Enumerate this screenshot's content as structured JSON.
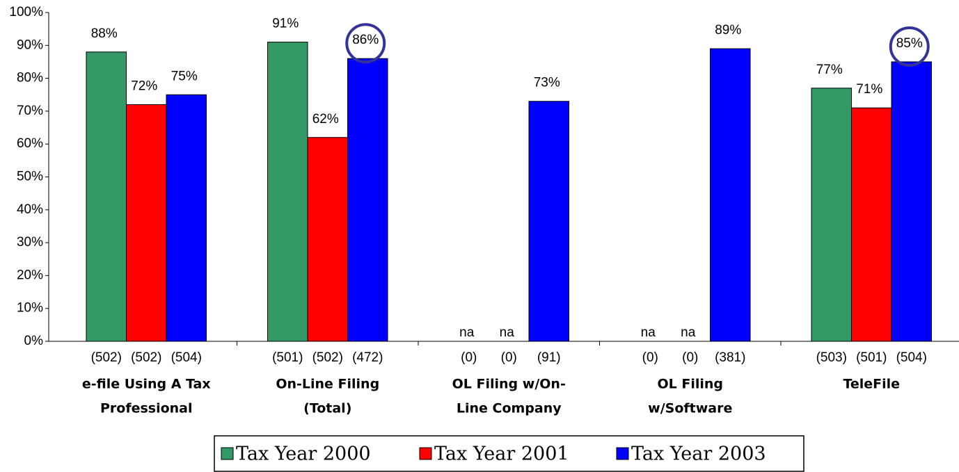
{
  "chart_data": {
    "type": "bar",
    "categories": [
      [
        "e-file Using A Tax",
        "Professional"
      ],
      [
        "On-Line Filing",
        "(Total)"
      ],
      [
        "OL Filing w/On-",
        "Line Company"
      ],
      [
        "OL Filing",
        "w/Software"
      ],
      [
        "TeleFile"
      ]
    ],
    "series": [
      {
        "name": "Tax Year 2000",
        "color": "#339966",
        "values": [
          88,
          91,
          null,
          null,
          77
        ],
        "value_labels": [
          "88%",
          "91%",
          "na",
          "na",
          "77%"
        ],
        "sample_sizes": [
          "(502)",
          "(501)",
          "(0)",
          "(0)",
          "(503)"
        ]
      },
      {
        "name": "Tax Year 2001",
        "color": "#ff0000",
        "values": [
          72,
          62,
          null,
          null,
          71
        ],
        "value_labels": [
          "72%",
          "62%",
          "na",
          "na",
          "71%"
        ],
        "sample_sizes": [
          "(502)",
          "(502)",
          "(0)",
          "(0)",
          "(501)"
        ]
      },
      {
        "name": "Tax Year 2003",
        "color": "#0000ff",
        "values": [
          75,
          86,
          73,
          89,
          85
        ],
        "value_labels": [
          "75%",
          "86%",
          "73%",
          "89%",
          "85%"
        ],
        "sample_sizes": [
          "(504)",
          "(472)",
          "(91)",
          "(381)",
          "(504)"
        ]
      }
    ],
    "ylim": [
      0,
      100
    ],
    "yticks": [
      {
        "value": 0,
        "label": "0%"
      },
      {
        "value": 10,
        "label": "10%"
      },
      {
        "value": 20,
        "label": "20%"
      },
      {
        "value": 30,
        "label": "30%"
      },
      {
        "value": 40,
        "label": "40%"
      },
      {
        "value": 50,
        "label": "50%"
      },
      {
        "value": 60,
        "label": "60%"
      },
      {
        "value": 70,
        "label": "70%"
      },
      {
        "value": 80,
        "label": "80%"
      },
      {
        "value": 90,
        "label": "90%"
      },
      {
        "value": 100,
        "label": "100%"
      }
    ],
    "legend": "bottom"
  }
}
